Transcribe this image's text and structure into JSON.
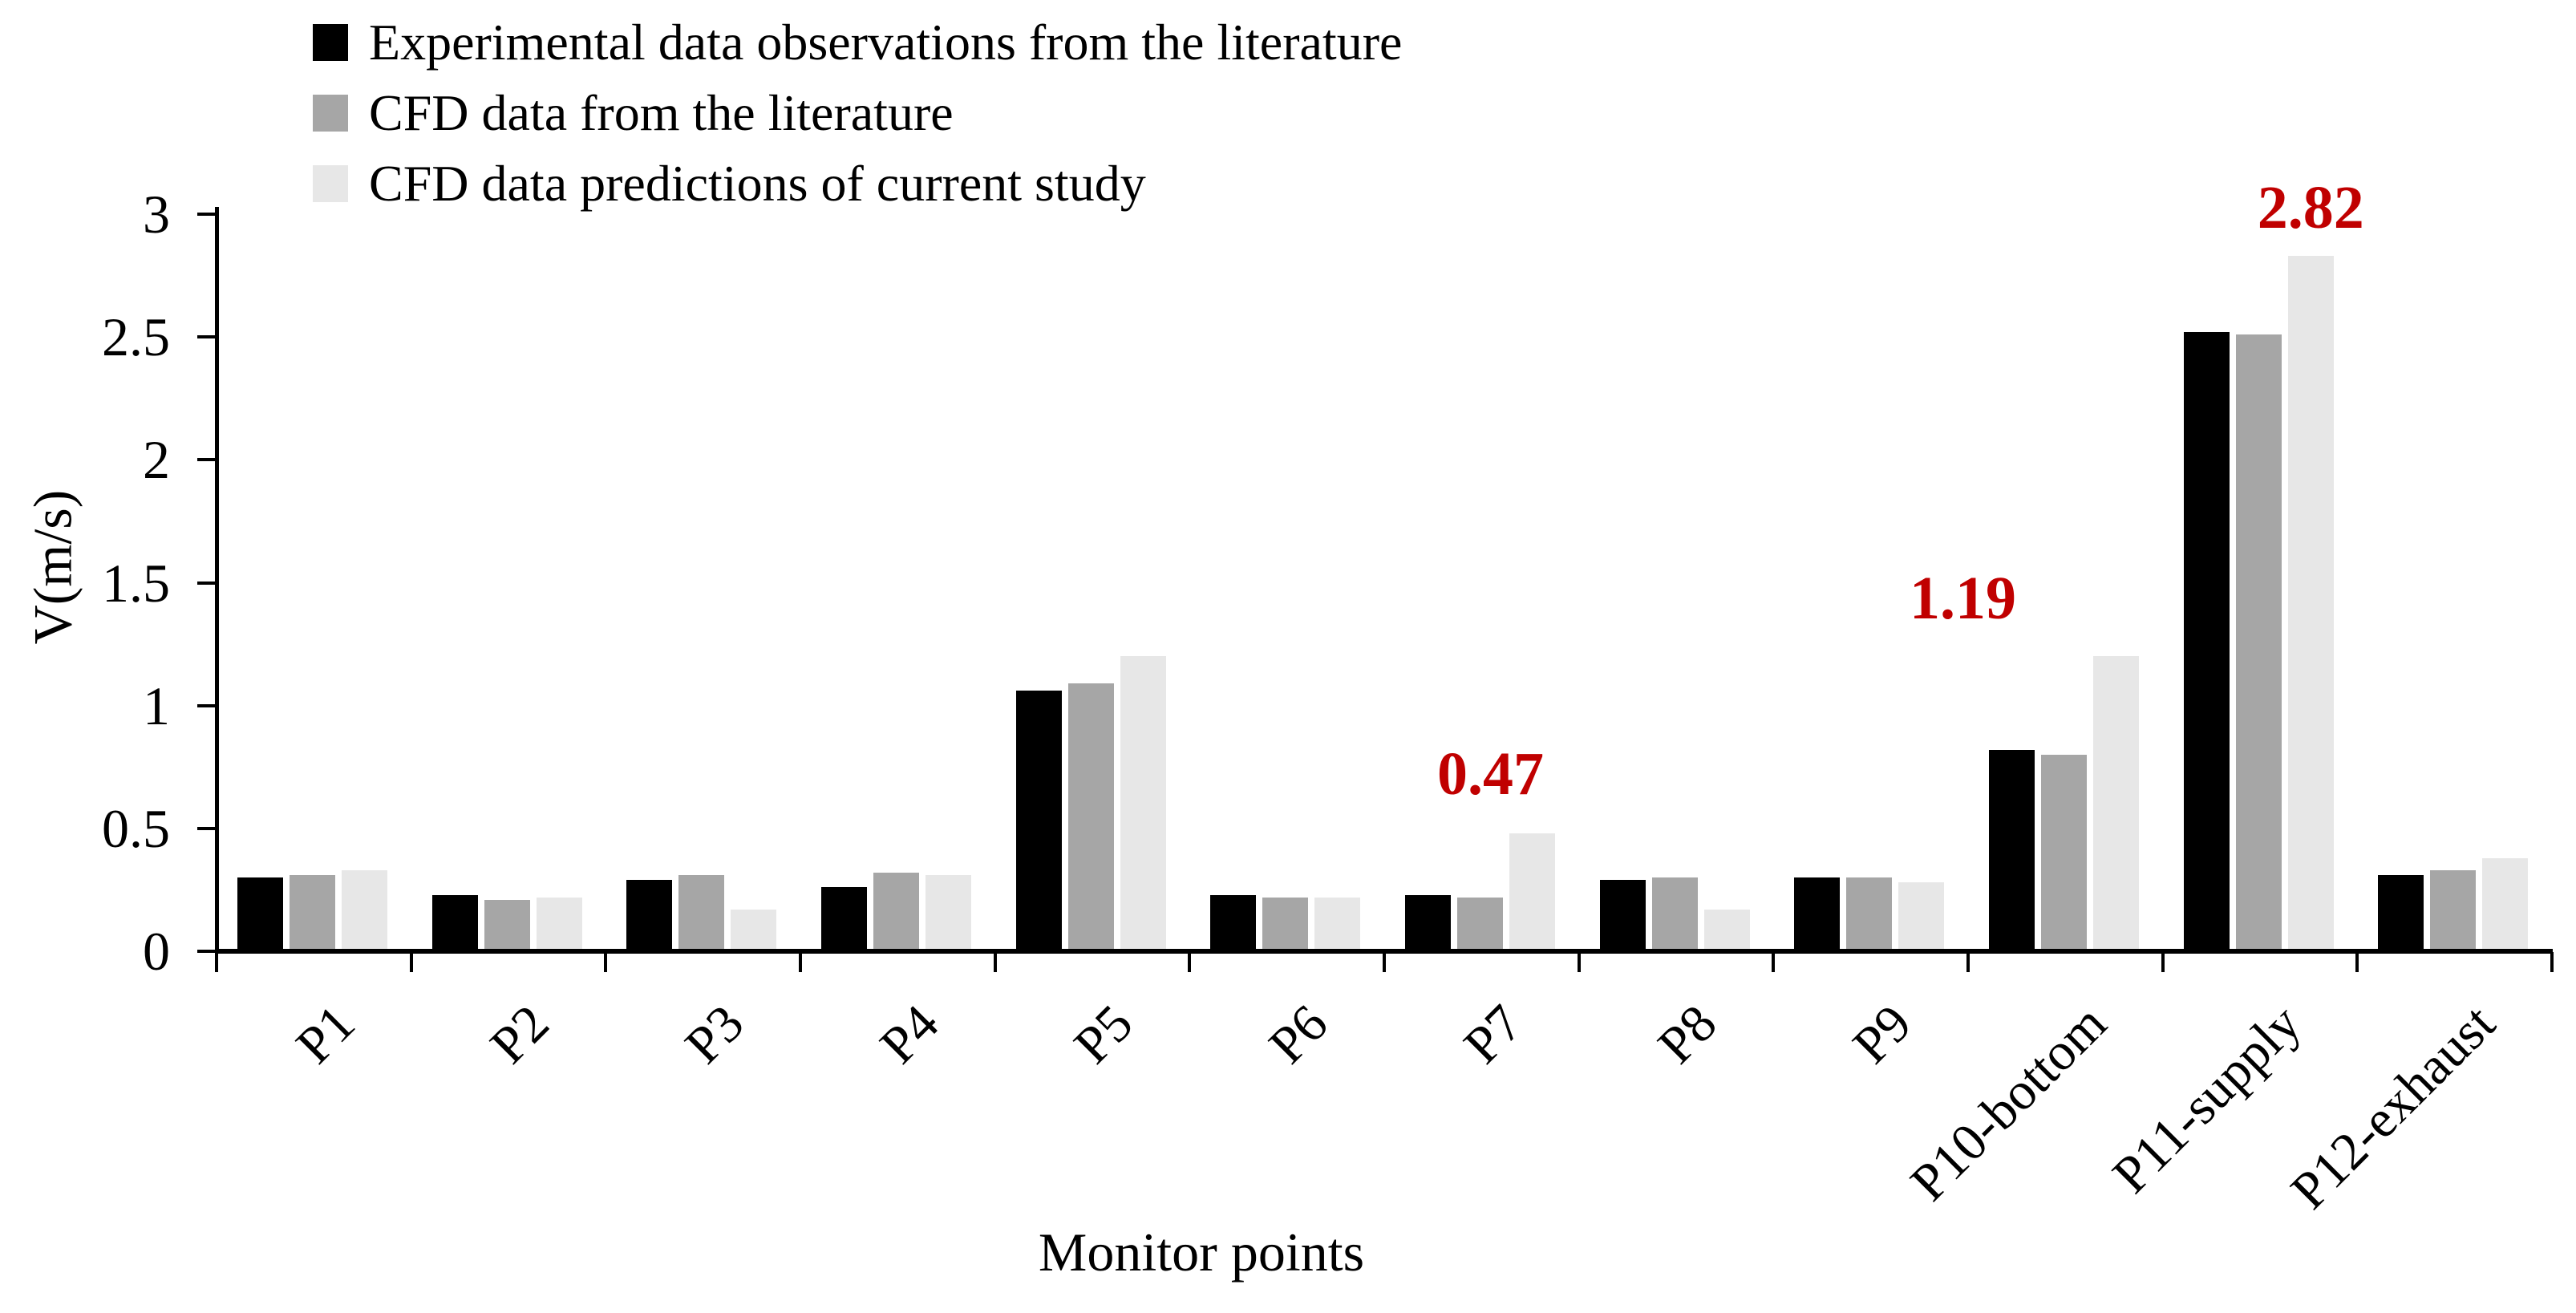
{
  "chart_data": {
    "type": "bar",
    "title": "",
    "xlabel": "Monitor points",
    "ylabel": "V(m/s)",
    "ylim": [
      0,
      3
    ],
    "ytick_step": 0.5,
    "yticks": [
      3,
      2.5,
      2,
      1.5,
      1,
      0.5,
      0
    ],
    "grid": false,
    "legend_position": "top-left",
    "categories": [
      "P1",
      "P2",
      "P3",
      "P4",
      "P5",
      "P6",
      "P7",
      "P8",
      "P9",
      "P10-bottom",
      "P11-supply",
      "P12-exhaust"
    ],
    "series": [
      {
        "name": "Experimental data observations from the literature",
        "color": "#000000",
        "values": [
          0.29,
          0.22,
          0.28,
          0.25,
          1.05,
          0.22,
          0.22,
          0.28,
          0.29,
          0.81,
          2.51,
          0.3
        ]
      },
      {
        "name": "CFD data from the literature",
        "color": "#a6a6a6",
        "values": [
          0.3,
          0.2,
          0.3,
          0.31,
          1.08,
          0.21,
          0.21,
          0.29,
          0.29,
          0.79,
          2.5,
          0.32
        ]
      },
      {
        "name": "CFD data predictions of current study",
        "color": "#e7e7e7",
        "values": [
          0.32,
          0.21,
          0.16,
          0.3,
          1.19,
          0.21,
          0.47,
          0.16,
          0.27,
          1.19,
          2.82,
          0.37
        ]
      }
    ],
    "annotations": [
      {
        "text": "0.47",
        "category": "P7",
        "series": "CFD data predictions of current study",
        "color": "#c00000"
      },
      {
        "text": "1.19",
        "category": "P10-bottom",
        "series": "CFD data predictions of current study",
        "color": "#c00000"
      },
      {
        "text": "2.82",
        "category": "P11-supply",
        "series": "CFD data predictions of current study",
        "color": "#c00000"
      }
    ]
  }
}
